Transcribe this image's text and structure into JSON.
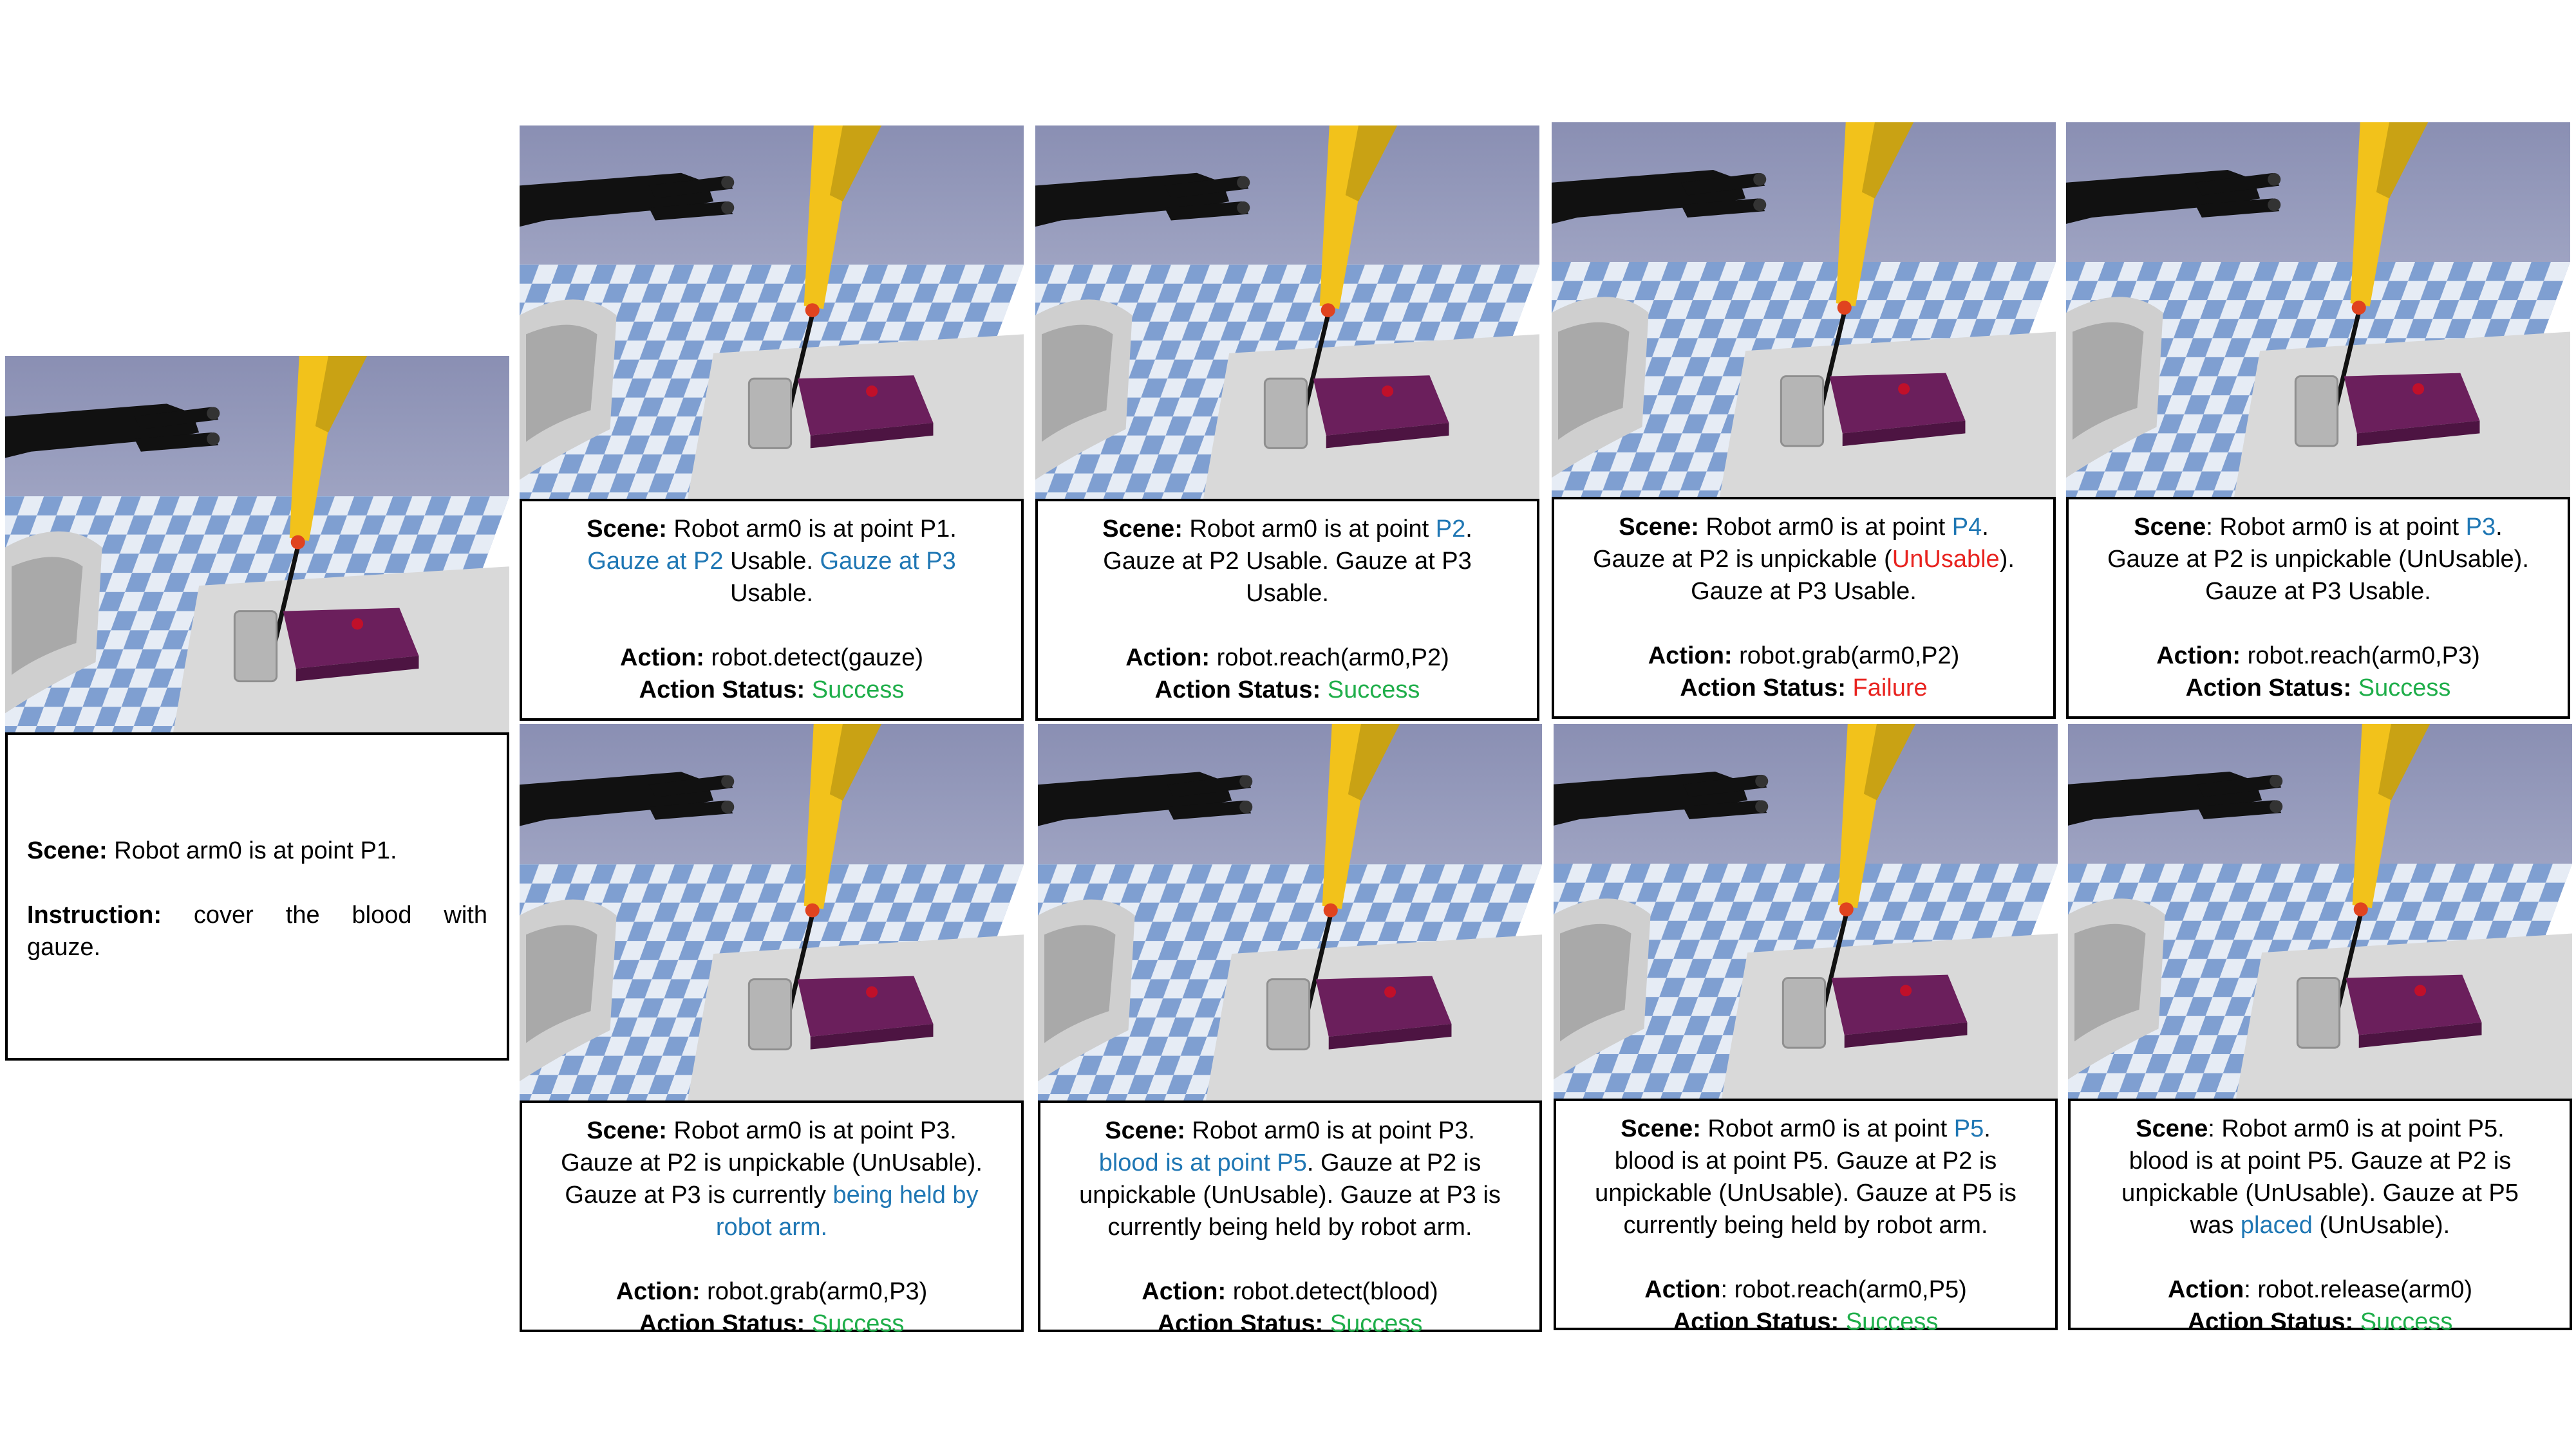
{
  "first": {
    "scene_label": "Scene:",
    "scene_text": " Robot arm0 is at point P1.",
    "instruction_label": "Instruction:",
    "instruction_text": " cover the blood with gauze."
  },
  "panels": [
    {
      "scene_label": "Scene:",
      "l1a": " Robot arm0 is at point P1.",
      "l2a": "Gauze at P2",
      "l2b": " Usable. ",
      "l2c": "Gauze at P3",
      "l3": "Usable.",
      "action_label": "Action:",
      "action": " robot.detect(gauze)",
      "status_label": "Action Status:",
      "status": " Success"
    },
    {
      "scene_label": "Scene:",
      "l1a": " Robot arm0 is at point ",
      "l1b": "P2",
      "l1c": ".",
      "l2": "Gauze at P2 Usable. Gauze at P3",
      "l3": "Usable.",
      "action_label": "Action:",
      "action": " robot.reach(arm0,P2)",
      "status_label": "Action Status:",
      "status": " Success"
    },
    {
      "scene_label": "Scene:",
      "l1a": " Robot arm0 is at point ",
      "l1b": "P4",
      "l1c": ".",
      "l2a": "Gauze at P2 is unpickable (",
      "l2b": "UnUsable",
      "l2c": ").",
      "l3": "Gauze at P3 Usable.",
      "action_label": "Action:",
      "action": " robot.grab(arm0,P2)",
      "status_label": "Action Status:",
      "status": " Failure"
    },
    {
      "scene_label": "Scene",
      "l1a": ": Robot arm0 is at point ",
      "l1b": "P3",
      "l1c": ".",
      "l2": "Gauze at P2 is unpickable (UnUsable).",
      "l3": "Gauze at P3 Usable.",
      "action_label": "Action:",
      "action": " robot.reach(arm0,P3)",
      "status_label": "Action Status:",
      "status": " Success"
    },
    {
      "scene_label": "Scene:",
      "l1a": " Robot arm0 is at point P3.",
      "l2": "Gauze at P2 is unpickable (UnUsable).",
      "l3a": "Gauze at P3 is currently ",
      "l3b": "being held by",
      "l4": "robot arm.",
      "action_label": "Action:",
      "action": " robot.grab(arm0,P3)",
      "status_label": "Action Status:",
      "status": " Success"
    },
    {
      "scene_label": "Scene:",
      "l1a": " Robot arm0 is at point P3.",
      "l2a": "blood is at point P5",
      "l2b": ". Gauze at P2 is",
      "l3": "unpickable (UnUsable). Gauze at P3 is",
      "l4": "currently being held by robot arm.",
      "action_label": "Action:",
      "action": " robot.detect(blood)",
      "status_label": "Action Status:",
      "status": " Success"
    },
    {
      "scene_label": "Scene:",
      "l1a": " Robot arm0 is at point ",
      "l1b": "P5",
      "l1c": ".",
      "l2": "blood is at point P5. Gauze at P2 is",
      "l3": "unpickable (UnUsable). Gauze at P5 is",
      "l4": "currently being held by robot arm.",
      "action_label": "Action",
      "action": ": robot.reach(arm0,P5)",
      "status_label": "Action Status:",
      "status": " Success"
    },
    {
      "scene_label": "Scene",
      "l1a": ": Robot arm0 is at point P5.",
      "l2": "blood is at point P5. Gauze at P2 is",
      "l3": "unpickable (UnUsable). Gauze at P5",
      "l4a": "was ",
      "l4b": "placed",
      "l4c": " (UnUsable).",
      "action_label": "Action",
      "action": ": robot.release(arm0)",
      "status_label": "Action Status:",
      "status": " Success"
    }
  ],
  "colors": {
    "highlight": "#1f77b4",
    "failure": "#e8231f",
    "success": "#1fae4a",
    "sky": "#8a8fb3",
    "floor_light": "#e6ecf5",
    "floor_dark": "#7f9fd1",
    "table": "#d9d9d9",
    "tray": "#6b1f5c",
    "arm_yellow": "#f2c21b",
    "gripper": "#111111"
  }
}
